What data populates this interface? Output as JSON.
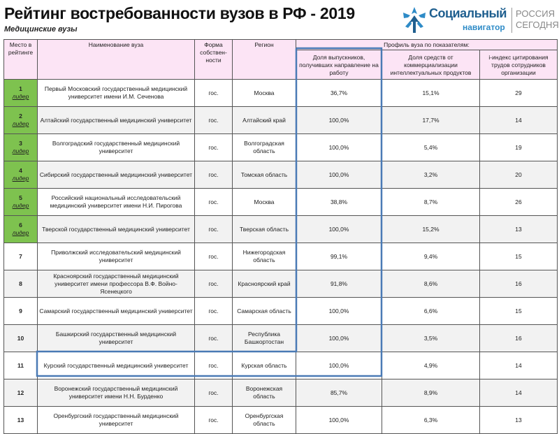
{
  "header": {
    "title": "Рейтинг востребованности вузов в РФ - 2019",
    "subtitle": "Медицинские вузы"
  },
  "logo": {
    "brand": "Социальный",
    "brand_sub": "навигатор",
    "partner_line1": "РОССИЯ",
    "partner_line2": "СЕГОДНЯ",
    "colors": {
      "brand": "#1f5f8f",
      "accent": "#2e8bc7"
    }
  },
  "table": {
    "headers": {
      "rank": "Место в рейтинге",
      "name": "Наименование вуза",
      "ownership": "Форма собствен-ности",
      "region": "Регион",
      "profile": "Профиль вуза по показателям:",
      "employment": "Доля выпускников, получивших направление на работу",
      "commercial": "Доля средств от коммерциализации интеллектуальных продуктов",
      "citation": "i-индекс цитирования трудов сотрудников организации"
    },
    "leader_label": "лидер",
    "colors": {
      "header_bg": "#fce4f5",
      "leader_bg": "#7ec24f",
      "highlight": "#4a7ab5"
    },
    "rows": [
      {
        "rank": "1",
        "leader": true,
        "name": "Первый Московский государственный медицинский университет имени И.М. Сеченова",
        "ownership": "гос.",
        "region": "Москва",
        "employment": "36,7%",
        "commercial": "15,1%",
        "citation": "29"
      },
      {
        "rank": "2",
        "leader": true,
        "name": "Алтайский государственный медицинский университет",
        "ownership": "гос.",
        "region": "Алтайский край",
        "employment": "100,0%",
        "commercial": "17,7%",
        "citation": "14"
      },
      {
        "rank": "3",
        "leader": true,
        "name": "Волгоградский государственный медицинский университет",
        "ownership": "гос.",
        "region": "Волгоградская область",
        "employment": "100,0%",
        "commercial": "5,4%",
        "citation": "19"
      },
      {
        "rank": "4",
        "leader": true,
        "name": "Сибирский государственный медицинский университет",
        "ownership": "гос.",
        "region": "Томская область",
        "employment": "100,0%",
        "commercial": "3,2%",
        "citation": "20"
      },
      {
        "rank": "5",
        "leader": true,
        "name": "Российский национальный исследовательский медицинский университет имени Н.И. Пирогова",
        "ownership": "гос.",
        "region": "Москва",
        "employment": "38,8%",
        "commercial": "8,7%",
        "citation": "26"
      },
      {
        "rank": "6",
        "leader": true,
        "name": "Тверской государственный медицинский университет",
        "ownership": "гос.",
        "region": "Тверская область",
        "employment": "100,0%",
        "commercial": "15,2%",
        "citation": "13"
      },
      {
        "rank": "7",
        "leader": false,
        "name": "Приволжский исследовательский медицинский университет",
        "ownership": "гос.",
        "region": "Нижегородская область",
        "employment": "99,1%",
        "commercial": "9,4%",
        "citation": "15"
      },
      {
        "rank": "8",
        "leader": false,
        "name": "Красноярский государственный медицинский университет имени профессора В.Ф. Войно-Ясенецкого",
        "ownership": "гос.",
        "region": "Красноярский край",
        "employment": "91,8%",
        "commercial": "8,6%",
        "citation": "16"
      },
      {
        "rank": "9",
        "leader": false,
        "name": "Самарский государственный медицинский университет",
        "ownership": "гос.",
        "region": "Самарская область",
        "employment": "100,0%",
        "commercial": "6,6%",
        "citation": "15"
      },
      {
        "rank": "10",
        "leader": false,
        "name": "Башкирский государственный медицинский университет",
        "ownership": "гос.",
        "region": "Республика Башкортостан",
        "employment": "100,0%",
        "commercial": "3,5%",
        "citation": "16"
      },
      {
        "rank": "11",
        "leader": false,
        "name": "Курский государственный медицинский университет",
        "ownership": "гос.",
        "region": "Курская область",
        "employment": "100,0%",
        "commercial": "4,9%",
        "citation": "14"
      },
      {
        "rank": "12",
        "leader": false,
        "name": "Воронежский государственный медицинский университет имени Н.Н. Бурденко",
        "ownership": "гос.",
        "region": "Воронежская область",
        "employment": "85,7%",
        "commercial": "8,9%",
        "citation": "14"
      },
      {
        "rank": "13",
        "leader": false,
        "name": "Оренбургский государственный медицинский университет",
        "ownership": "гос.",
        "region": "Оренбургская область",
        "employment": "100,0%",
        "commercial": "6,3%",
        "citation": "13"
      }
    ]
  }
}
